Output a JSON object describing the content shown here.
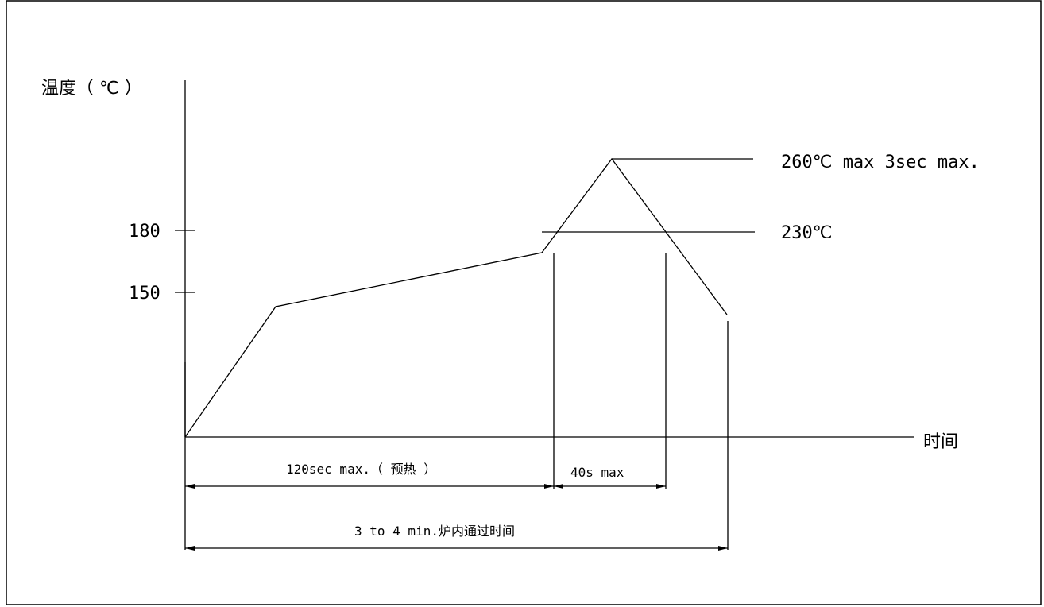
{
  "axes": {
    "y_label": "温度（ ℃ ）",
    "x_label": "时间",
    "ticks": [
      {
        "value": 180,
        "label": "180"
      },
      {
        "value": 150,
        "label": "150"
      }
    ]
  },
  "annotations": {
    "peak": "260℃ max 3sec max.",
    "reflow": "230℃"
  },
  "dimensions": {
    "preheat": "120sec max.（ 预热 ）",
    "above_230": "40s max",
    "total": "3 to 4 min.炉内通过时间"
  }
}
